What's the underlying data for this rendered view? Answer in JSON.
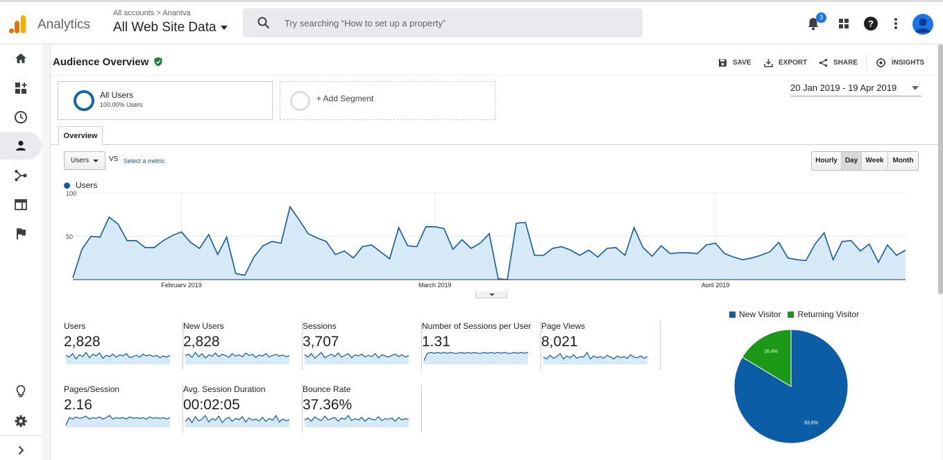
{
  "app": {
    "name": "Analytics"
  },
  "account": {
    "breadcrumb": "All accounts > Anantva",
    "view": "All Web Site Data"
  },
  "search": {
    "placeholder": "Try searching “How to set up a property”"
  },
  "notifications": {
    "count": "3"
  },
  "icons": {
    "logo": "analytics-logo-icon",
    "search": "search-icon",
    "notifications": "bell-icon",
    "apps": "apps-grid-icon",
    "help": "help-icon",
    "more": "more-vert-icon",
    "account": "avatar-icon"
  },
  "nav": [
    {
      "name": "home",
      "icon": "home-icon",
      "active": false
    },
    {
      "name": "customization",
      "icon": "dashboard-add-icon",
      "active": false
    },
    {
      "name": "realtime",
      "icon": "clock-icon",
      "active": false
    },
    {
      "name": "audience",
      "icon": "person-icon",
      "active": true
    },
    {
      "name": "acquisition",
      "icon": "acquisition-icon",
      "active": false
    },
    {
      "name": "behavior",
      "icon": "behavior-icon",
      "active": false
    },
    {
      "name": "conversions",
      "icon": "flag-icon",
      "active": false
    },
    {
      "name": "discover",
      "icon": "lightbulb-icon",
      "active": false
    },
    {
      "name": "admin",
      "icon": "gear-icon",
      "active": false
    },
    {
      "name": "expand",
      "icon": "chevron-right-icon",
      "active": false
    }
  ],
  "report": {
    "title": "Audience Overview",
    "actions": {
      "save": "SAVE",
      "export": "EXPORT",
      "share": "SHARE",
      "insights": "INSIGHTS"
    }
  },
  "segments": {
    "all_users": {
      "name": "All Users",
      "percent": "100.00% Users"
    },
    "add": "+ Add Segment"
  },
  "date_range": "20 Jan 2019 - 19 Apr 2019",
  "tabs": {
    "overview": "Overview"
  },
  "metric_picker": {
    "selected": "Users",
    "vs": "VS",
    "select_metric": "Select a metric"
  },
  "granularity": {
    "options": [
      "Hourly",
      "Day",
      "Week",
      "Month"
    ],
    "selected": "Day"
  },
  "colors": {
    "accent": "#0f5aa0",
    "area": "#d6e9f6",
    "new_visitor": "#0b5ea6",
    "returning_visitor": "#1b9816",
    "logo_orange": "#f9ab00",
    "logo_dark": "#e37400"
  },
  "chart_data": [
    {
      "type": "area",
      "series": [
        {
          "name": "Users",
          "values": [
            2,
            35,
            50,
            49,
            72,
            64,
            45,
            45,
            37,
            37,
            45,
            51,
            55,
            43,
            36,
            52,
            29,
            49,
            7,
            5,
            26,
            39,
            44,
            42,
            84,
            69,
            53,
            48,
            44,
            29,
            33,
            25,
            38,
            40,
            32,
            24,
            60,
            39,
            38,
            61,
            61,
            59,
            35,
            46,
            36,
            42,
            53,
            1,
            0,
            65,
            66,
            28,
            28,
            36,
            38,
            34,
            28,
            34,
            26,
            36,
            37,
            28,
            60,
            37,
            27,
            39,
            30,
            31,
            31,
            30,
            40,
            42,
            30,
            26,
            23,
            25,
            28,
            32,
            43,
            25,
            23,
            22,
            41,
            54,
            23,
            44,
            45,
            33,
            41,
            20,
            40,
            28,
            34
          ],
          "ylim": [
            0,
            100
          ],
          "yticks": [
            100,
            50
          ],
          "xticks": [
            {
              "label": "February 2019",
              "index": 12
            },
            {
              "label": "March 2019",
              "index": 40
            },
            {
              "label": "April 2019",
              "index": 71
            }
          ],
          "grid": true
        }
      ]
    },
    {
      "type": "pie",
      "series": [
        {
          "name": "New Visitor",
          "value": 83.6,
          "label": "83.6%"
        },
        {
          "name": "Returning Visitor",
          "value": 16.4,
          "label": "16.4%"
        }
      ],
      "legend": "top"
    }
  ],
  "scorecards": [
    {
      "label": "Users",
      "value": "2,828",
      "spark": [
        15,
        12,
        18,
        9,
        16,
        13,
        20,
        11,
        17,
        14,
        19,
        10,
        15,
        13,
        17,
        12,
        16,
        14,
        18,
        11,
        13,
        15,
        12,
        17,
        14,
        16,
        13,
        15,
        11,
        14,
        12,
        15
      ]
    },
    {
      "label": "New Users",
      "value": "2,828",
      "spark": [
        14,
        16,
        11,
        19,
        12,
        17,
        10,
        15,
        13,
        18,
        12,
        16,
        14,
        11,
        17,
        13,
        15,
        12,
        18,
        14,
        16,
        11,
        15,
        13,
        17,
        12,
        14,
        16,
        13,
        15,
        12,
        14
      ]
    },
    {
      "label": "Sessions",
      "value": "3,707",
      "spark": [
        16,
        12,
        18,
        10,
        15,
        20,
        11,
        14,
        17,
        13,
        19,
        12,
        15,
        18,
        11,
        16,
        14,
        17,
        12,
        15,
        13,
        18,
        11,
        16,
        14,
        12,
        15,
        17,
        13,
        16,
        12,
        15
      ]
    },
    {
      "label": "Number of Sessions per User",
      "value": "1.31",
      "spark": [
        4,
        12,
        13,
        12,
        13,
        12,
        13,
        12,
        13,
        12,
        12,
        13,
        12,
        13,
        12,
        13,
        12,
        12,
        13,
        12,
        13,
        12,
        13,
        12,
        13,
        12,
        12,
        13,
        12,
        13,
        12,
        13
      ]
    },
    {
      "label": "Page Views",
      "value": "8,021",
      "spark": [
        12,
        9,
        15,
        10,
        13,
        18,
        9,
        14,
        11,
        16,
        10,
        13,
        12,
        20,
        9,
        14,
        11,
        13,
        10,
        15,
        12,
        9,
        14,
        11,
        13,
        10,
        16,
        12,
        11,
        14,
        10,
        13
      ]
    },
    {
      "label": "Pages/Session",
      "value": "2.16",
      "spark": [
        3,
        14,
        12,
        15,
        13,
        14,
        16,
        12,
        14,
        13,
        15,
        12,
        14,
        17,
        12,
        14,
        13,
        14,
        12,
        15,
        13,
        14,
        13,
        14,
        12,
        15,
        13,
        14,
        13,
        14,
        12,
        14
      ]
    },
    {
      "label": "Avg. Session Duration",
      "value": "00:02:05",
      "spark": [
        10,
        16,
        8,
        18,
        11,
        14,
        20,
        9,
        15,
        12,
        19,
        8,
        14,
        17,
        10,
        15,
        13,
        18,
        9,
        16,
        12,
        14,
        11,
        17,
        10,
        15,
        12,
        20,
        9,
        14,
        11,
        13
      ]
    },
    {
      "label": "Bounce Rate",
      "value": "37.36%",
      "spark": [
        12,
        15,
        10,
        17,
        13,
        11,
        18,
        12,
        14,
        16,
        10,
        15,
        13,
        19,
        11,
        14,
        12,
        16,
        10,
        15,
        13,
        12,
        17,
        11,
        14,
        13,
        15,
        10,
        16,
        12,
        14,
        13
      ]
    }
  ]
}
